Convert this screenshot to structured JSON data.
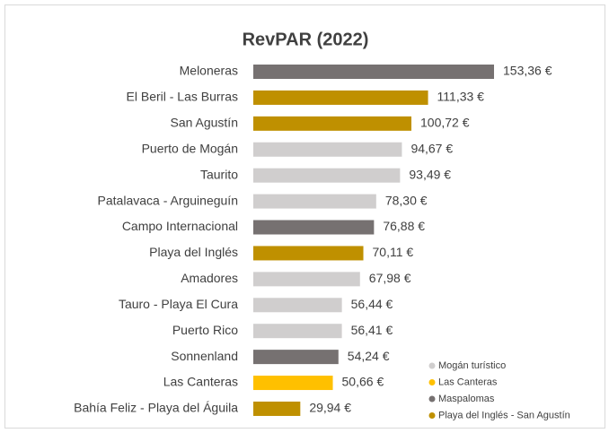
{
  "chart_data": {
    "type": "bar",
    "title": "RevPAR (2022)",
    "categories": [
      "Meloneras",
      "El Beril - Las Burras",
      "San Agustín",
      "Puerto de Mogán",
      "Taurito",
      "Patalavaca - Arguineguín",
      "Campo Internacional",
      "Playa del Inglés",
      "Amadores",
      "Tauro - Playa El Cura",
      "Puerto Rico",
      "Sonnenland",
      "Las Canteras",
      "Bahía Feliz - Playa del Águila"
    ],
    "values": [
      153.36,
      111.33,
      100.72,
      94.67,
      93.49,
      78.3,
      76.88,
      70.11,
      67.98,
      56.44,
      56.41,
      54.24,
      50.66,
      29.94
    ],
    "value_labels": [
      "153,36 €",
      "111,33 €",
      "100,72 €",
      "94,67 €",
      "93,49 €",
      "78,30 €",
      "76,88 €",
      "70,11 €",
      "67,98 €",
      "56,44 €",
      "56,41 €",
      "54,24 €",
      "50,66 €",
      "29,94 €"
    ],
    "colors": [
      "#767171",
      "#bf9000",
      "#bf9000",
      "#d0cece",
      "#d0cece",
      "#d0cece",
      "#767171",
      "#bf9000",
      "#d0cece",
      "#d0cece",
      "#d0cece",
      "#767171",
      "#ffc000",
      "#bf9000"
    ],
    "legend": [
      {
        "name": "Mogán turístico",
        "color": "#d0cece"
      },
      {
        "name": "Las Canteras",
        "color": "#ffc000"
      },
      {
        "name": "Maspalomas",
        "color": "#767171"
      },
      {
        "name": "Playa del Inglés - San Agustín",
        "color": "#bf9000"
      }
    ]
  }
}
